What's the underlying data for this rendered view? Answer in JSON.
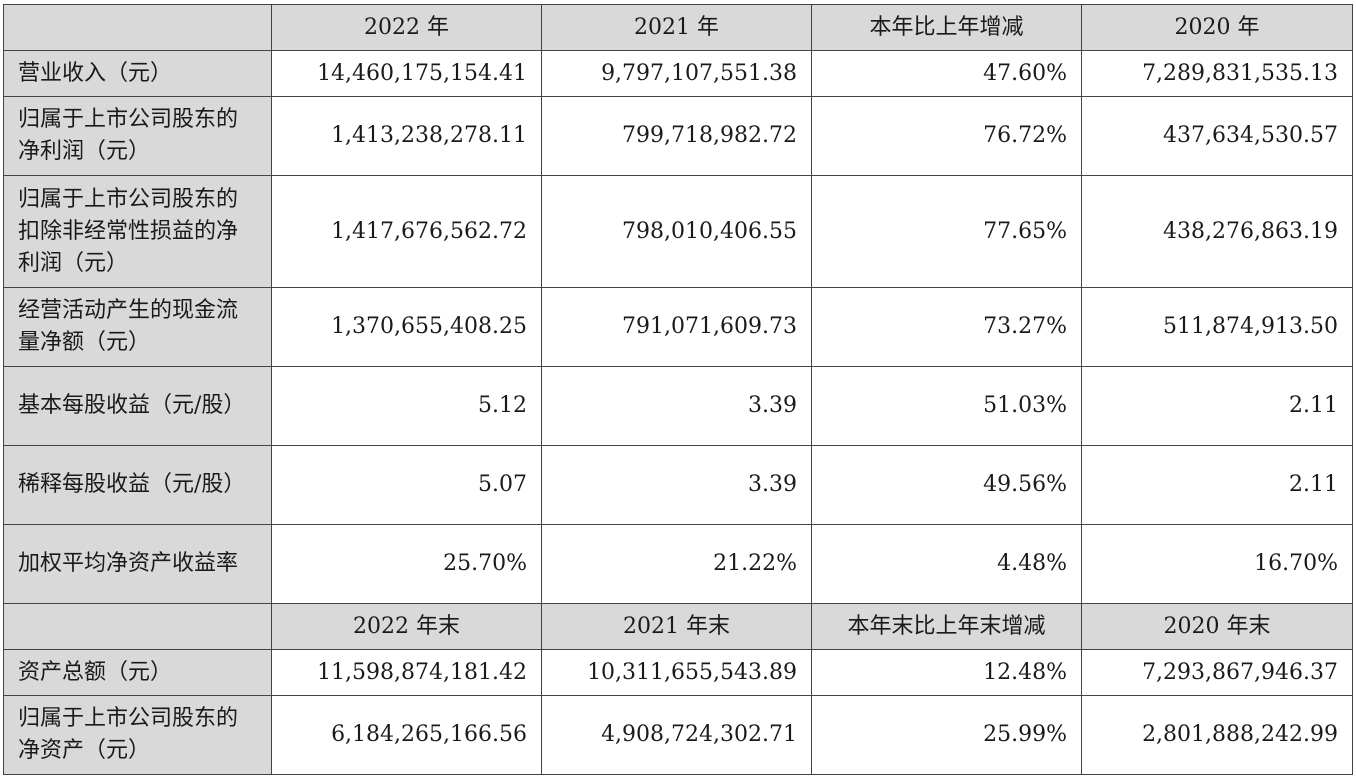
{
  "header1": [
    "",
    "2022 年",
    "2021 年",
    "本年比上年增减",
    "2020 年"
  ],
  "section1": [
    {
      "label": "营业收入（元）",
      "values": [
        "14,460,175,154.41",
        "9,797,107,551.38",
        "47.60%",
        "7,289,831,535.13"
      ]
    },
    {
      "label": "归属于上市公司股东的净利润（元）",
      "values": [
        "1,413,238,278.11",
        "799,718,982.72",
        "76.72%",
        "437,634,530.57"
      ]
    },
    {
      "label": "归属于上市公司股东的扣除非经常性损益的净利润（元）",
      "values": [
        "1,417,676,562.72",
        "798,010,406.55",
        "77.65%",
        "438,276,863.19"
      ]
    },
    {
      "label": "经营活动产生的现金流量净额（元）",
      "values": [
        "1,370,655,408.25",
        "791,071,609.73",
        "73.27%",
        "511,874,913.50"
      ]
    },
    {
      "label": "基本每股收益（元/股）",
      "values": [
        "5.12",
        "3.39",
        "51.03%",
        "2.11"
      ]
    },
    {
      "label": "稀释每股收益（元/股）",
      "values": [
        "5.07",
        "3.39",
        "49.56%",
        "2.11"
      ]
    },
    {
      "label": "加权平均净资产收益率",
      "values": [
        "25.70%",
        "21.22%",
        "4.48%",
        "16.70%"
      ]
    }
  ],
  "header2": [
    "",
    "2022 年末",
    "2021 年末",
    "本年末比上年末增减",
    "2020 年末"
  ],
  "section2": [
    {
      "label": "资产总额（元）",
      "values": [
        "11,598,874,181.42",
        "10,311,655,543.89",
        "12.48%",
        "7,293,867,946.37"
      ]
    },
    {
      "label": "归属于上市公司股东的净资产（元）",
      "values": [
        "6,184,265,166.56",
        "4,908,724,302.71",
        "25.99%",
        "2,801,888,242.99"
      ]
    }
  ]
}
